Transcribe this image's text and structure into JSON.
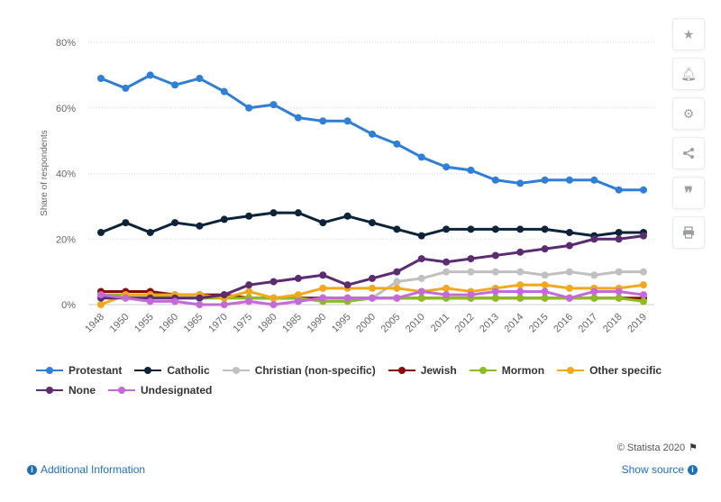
{
  "chart_data": {
    "type": "line",
    "title": "",
    "xlabel": "",
    "ylabel": "Share of respondents",
    "ylim": [
      0,
      80
    ],
    "yticks": [
      "0%",
      "20%",
      "40%",
      "60%",
      "80%"
    ],
    "categories": [
      "1948",
      "1950",
      "1955",
      "1960",
      "1965",
      "1970",
      "1975",
      "1980",
      "1985",
      "1990",
      "1995",
      "2000",
      "2005",
      "2010",
      "2011",
      "2012",
      "2013",
      "2014",
      "2015",
      "2016",
      "2017",
      "2018",
      "2019"
    ],
    "series": [
      {
        "name": "Protestant",
        "color": "#2f7ed8",
        "values": [
          69,
          66,
          70,
          67,
          69,
          65,
          60,
          61,
          57,
          56,
          56,
          52,
          49,
          45,
          42,
          41,
          38,
          37,
          38,
          38,
          38,
          35,
          35
        ]
      },
      {
        "name": "Catholic",
        "color": "#0d233a",
        "values": [
          22,
          25,
          22,
          25,
          24,
          26,
          27,
          28,
          28,
          25,
          27,
          25,
          23,
          21,
          23,
          23,
          23,
          23,
          23,
          22,
          21,
          22,
          22
        ]
      },
      {
        "name": "Christian (non-specific)",
        "color": "#c0c0c0",
        "values": [
          3,
          3,
          2,
          2,
          2,
          2,
          2,
          2,
          2,
          2,
          2,
          2,
          7,
          8,
          10,
          10,
          10,
          10,
          9,
          10,
          9,
          10,
          10
        ]
      },
      {
        "name": "Jewish",
        "color": "#8b0a0a",
        "values": [
          4,
          4,
          4,
          3,
          3,
          3,
          2,
          2,
          2,
          2,
          2,
          2,
          2,
          2,
          2,
          2,
          2,
          2,
          2,
          2,
          2,
          2,
          2
        ]
      },
      {
        "name": "Mormon",
        "color": "#8bbc21",
        "values": [
          3,
          3,
          3,
          2,
          2,
          2,
          2,
          2,
          2,
          1,
          1,
          2,
          2,
          2,
          2,
          2,
          2,
          2,
          2,
          2,
          2,
          2,
          1
        ]
      },
      {
        "name": "Other specific",
        "color": "#f1a81c",
        "values": [
          0,
          3,
          3,
          3,
          3,
          2,
          4,
          2,
          3,
          5,
          5,
          5,
          5,
          4,
          5,
          4,
          5,
          6,
          6,
          5,
          5,
          5,
          6
        ]
      },
      {
        "name": "None",
        "color": "#5b2c6f",
        "values": [
          2,
          2,
          2,
          2,
          2,
          3,
          6,
          7,
          8,
          9,
          6,
          8,
          10,
          14,
          13,
          14,
          15,
          16,
          17,
          18,
          20,
          20,
          21
        ]
      },
      {
        "name": "Undesignated",
        "color": "#c46ad8",
        "values": [
          3,
          2,
          1,
          1,
          0,
          0,
          1,
          0,
          1,
          2,
          2,
          2,
          2,
          4,
          3,
          3,
          4,
          4,
          4,
          2,
          4,
          4,
          3
        ]
      }
    ],
    "grid": true,
    "legend": "bottom"
  },
  "legend_rows": [
    [
      "Protestant",
      "Catholic",
      "Christian (non-specific)",
      "Jewish",
      "Mormon",
      "Other specific"
    ],
    [
      "None",
      "Undesignated"
    ]
  ],
  "footer": {
    "additional_info": "Additional Information",
    "show_source": "Show source",
    "credit": "© Statista 2020"
  },
  "toolbar": {
    "icons": [
      "star-icon",
      "bell-icon",
      "gear-icon",
      "share-icon",
      "quote-icon",
      "print-icon"
    ]
  }
}
